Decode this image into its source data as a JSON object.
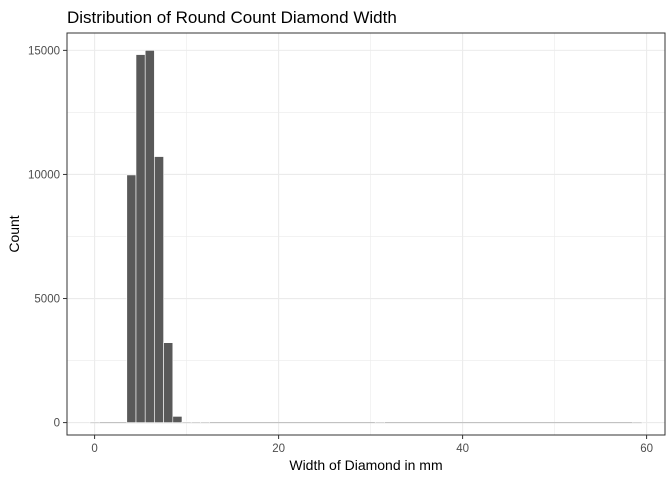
{
  "chart_data": {
    "type": "bar",
    "title": "Distribution of Round Count Diamond Width",
    "xlabel": "Width of Diamond in mm",
    "ylabel": "Count",
    "xlim": [
      -3,
      62
    ],
    "ylim": [
      -500,
      15700
    ],
    "x_ticks": [
      0,
      20,
      40,
      60
    ],
    "y_ticks": [
      0,
      5000,
      10000,
      15000
    ],
    "grid": true,
    "bin_width": 1,
    "bars": [
      {
        "x": 0,
        "value": 8
      },
      {
        "x": 4,
        "value": 9980
      },
      {
        "x": 5,
        "value": 14830
      },
      {
        "x": 6,
        "value": 15000
      },
      {
        "x": 7,
        "value": 10720
      },
      {
        "x": 8,
        "value": 3220
      },
      {
        "x": 9,
        "value": 250
      },
      {
        "x": 10,
        "value": 20
      },
      {
        "x": 11,
        "value": 2
      },
      {
        "x": 12,
        "value": 1
      },
      {
        "x": 31,
        "value": 1
      },
      {
        "x": 59,
        "value": 1
      }
    ],
    "colors": {
      "bar_fill": "#595959",
      "bar_outline": "#ffffff",
      "grid": "#ebebeb",
      "panel_border": "#333333"
    }
  }
}
